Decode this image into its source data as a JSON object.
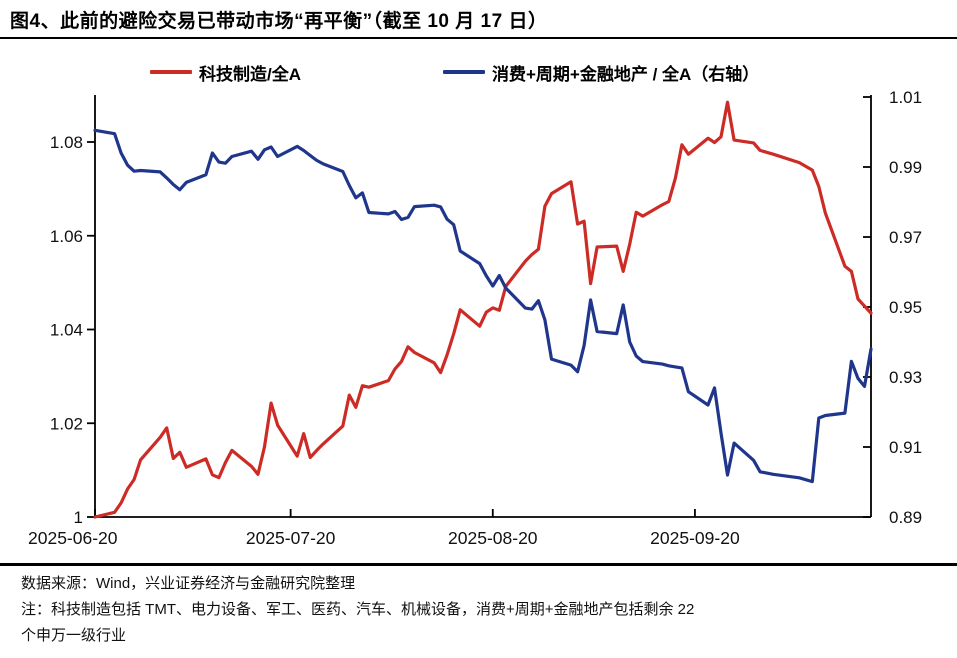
{
  "title": "图4、此前的避险交易已带动市场“再平衡”（截至 10 月 17 日）",
  "legend": {
    "items": [
      {
        "label": "科技制造/全A",
        "color": "#cd2b26"
      },
      {
        "label": "消费+周期+金融地产 / 全A（右轴）",
        "color": "#1f368c"
      }
    ]
  },
  "footer": {
    "source": "数据来源：Wind，兴业证券经济与金融研究院整理",
    "note_line1": "注：科技制造包括 TMT、电力设备、军工、医药、汽车、机械设备，消费+周期+金融地产包括剩余 22",
    "note_line2": "个申万一级行业"
  },
  "chart_data": {
    "type": "line",
    "title": "此前的避险交易已带动市场“再平衡”",
    "x_axis": {
      "range": [
        "2025-06-20",
        "2025-10-17"
      ],
      "tick_labels": [
        "2025-06-20",
        "2025-07-20",
        "2025-08-20",
        "2025-09-20"
      ],
      "tick_dates": [
        "06-20",
        "07-20",
        "08-20",
        "09-20"
      ]
    },
    "left_axis": {
      "ticks": [
        1,
        1.02,
        1.04,
        1.06,
        1.08
      ],
      "tick_labels": [
        "1",
        "1.02",
        "1.04",
        "1.06",
        "1.08"
      ],
      "min": 1.0,
      "max": 1.0896
    },
    "right_axis": {
      "ticks": [
        0.89,
        0.91,
        0.93,
        0.95,
        0.97,
        0.99,
        1.01
      ],
      "tick_labels": [
        "0.89",
        "0.91",
        "0.93",
        "0.95",
        "0.97",
        "0.99",
        "1.01"
      ],
      "min": 0.89,
      "max": 1.01
    },
    "grid": false,
    "legend_position": "top",
    "x": [
      "06-20",
      "06-23",
      "06-24",
      "06-25",
      "06-26",
      "06-27",
      "06-30",
      "07-01",
      "07-02",
      "07-03",
      "07-04",
      "07-07",
      "07-08",
      "07-09",
      "07-10",
      "07-11",
      "07-14",
      "07-15",
      "07-16",
      "07-17",
      "07-18",
      "07-21",
      "07-22",
      "07-23",
      "07-24",
      "07-25",
      "07-28",
      "07-29",
      "07-30",
      "07-31",
      "08-01",
      "08-04",
      "08-05",
      "08-06",
      "08-07",
      "08-08",
      "08-11",
      "08-12",
      "08-13",
      "08-14",
      "08-15",
      "08-18",
      "08-19",
      "08-20",
      "08-21",
      "08-22",
      "08-25",
      "08-26",
      "08-27",
      "08-28",
      "08-29",
      "09-01",
      "09-02",
      "09-03",
      "09-04",
      "09-05",
      "09-08",
      "09-09",
      "09-10",
      "09-11",
      "09-12",
      "09-15",
      "09-16",
      "09-17",
      "09-18",
      "09-19",
      "09-22",
      "09-23",
      "09-24",
      "09-25",
      "09-26",
      "09-29",
      "09-30",
      "10-02",
      "10-06",
      "10-08",
      "10-09",
      "10-10",
      "10-13",
      "10-14",
      "10-15",
      "10-16",
      "10-17"
    ],
    "series": [
      {
        "name": "科技制造/全A",
        "axis": "left",
        "color": "#cd2b26",
        "values": [
          1.0,
          1.001,
          1.003,
          1.006,
          1.008,
          1.0122,
          1.017,
          1.019,
          1.0125,
          1.0138,
          1.0106,
          1.0124,
          1.009,
          1.0084,
          1.0116,
          1.0142,
          1.0108,
          1.0091,
          1.015,
          1.0243,
          1.0196,
          1.013,
          1.0178,
          1.0127,
          1.0142,
          1.0156,
          1.0194,
          1.026,
          1.0234,
          1.028,
          1.0277,
          1.0291,
          1.0316,
          1.0332,
          1.0363,
          1.0351,
          1.0329,
          1.0308,
          1.0346,
          1.0391,
          1.0442,
          1.0407,
          1.0437,
          1.0446,
          1.0441,
          1.0492,
          1.0546,
          1.056,
          1.0571,
          1.0663,
          1.069,
          1.0715,
          1.0625,
          1.0631,
          1.0498,
          1.0576,
          1.0578,
          1.0524,
          1.0582,
          1.065,
          1.0642,
          1.0666,
          1.0673,
          1.0723,
          1.0794,
          1.0774,
          1.0808,
          1.0799,
          1.0811,
          1.0885,
          1.0804,
          1.0798,
          1.0782,
          1.0774,
          1.0756,
          1.074,
          1.0705,
          1.0648,
          1.0535,
          1.0524,
          1.0465,
          1.045,
          1.0435
        ]
      },
      {
        "name": "消费+周期+金融地产 / 全A（右轴）",
        "axis": "right",
        "color": "#1f368c",
        "values": [
          1.0005,
          0.9995,
          0.994,
          0.9905,
          0.9888,
          0.989,
          0.9886,
          0.9869,
          0.985,
          0.9835,
          0.9856,
          0.9878,
          0.994,
          0.9914,
          0.9911,
          0.993,
          0.9945,
          0.9922,
          0.9949,
          0.9957,
          0.993,
          0.9959,
          0.9947,
          0.9933,
          0.9919,
          0.9909,
          0.9887,
          0.9847,
          0.9812,
          0.9826,
          0.977,
          0.9766,
          0.9773,
          0.975,
          0.9756,
          0.9787,
          0.9791,
          0.9786,
          0.9751,
          0.9735,
          0.966,
          0.9624,
          0.9589,
          0.956,
          0.959,
          0.9554,
          0.9497,
          0.9494,
          0.9518,
          0.9463,
          0.9351,
          0.9334,
          0.9315,
          0.939,
          0.952,
          0.943,
          0.9424,
          0.9506,
          0.94,
          0.936,
          0.9344,
          0.9337,
          0.9332,
          0.9329,
          0.9326,
          0.9258,
          0.922,
          0.9269,
          0.914,
          0.902,
          0.9111,
          0.9062,
          0.9029,
          0.9022,
          0.9012,
          0.9001,
          0.9183,
          0.919,
          0.9197,
          0.9345,
          0.9296,
          0.9273,
          0.938
        ]
      }
    ]
  }
}
